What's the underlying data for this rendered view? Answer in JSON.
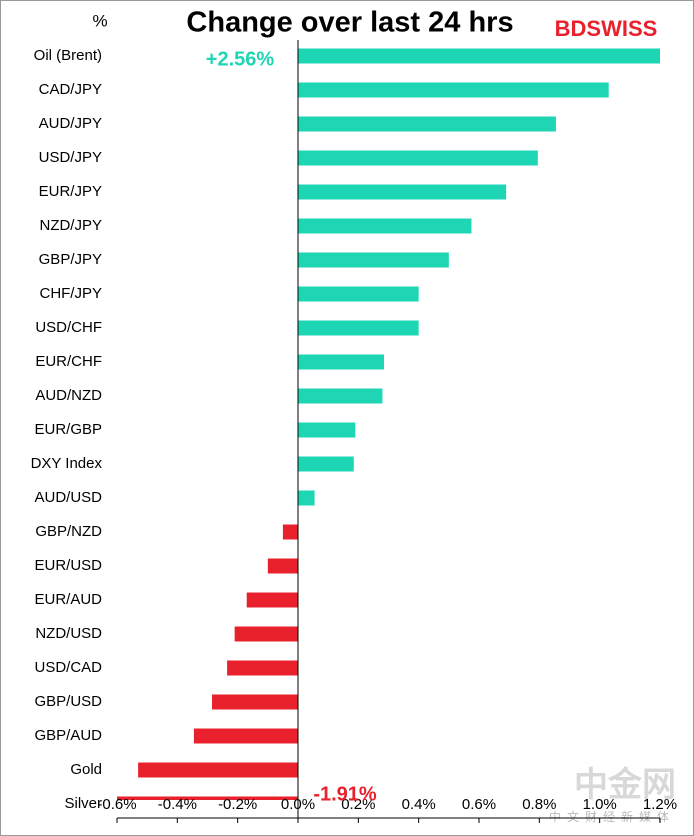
{
  "chart_data": {
    "type": "hbar",
    "title": "Change over last 24 hrs",
    "unit_label": "%",
    "logo": "BDSWISS",
    "watermark": "中金网",
    "watermark_sub": "中文财经新媒体",
    "categories": [
      "Oil (Brent)",
      "CAD/JPY",
      "AUD/JPY",
      "USD/JPY",
      "EUR/JPY",
      "NZD/JPY",
      "GBP/JPY",
      "CHF/JPY",
      "USD/CHF",
      "EUR/CHF",
      "AUD/NZD",
      "EUR/GBP",
      "DXY Index",
      "AUD/USD",
      "GBP/NZD",
      "EUR/USD",
      "EUR/AUD",
      "NZD/USD",
      "USD/CAD",
      "GBP/USD",
      "GBP/AUD",
      "Gold",
      "Silver"
    ],
    "values": [
      2.56,
      1.03,
      0.855,
      0.795,
      0.69,
      0.575,
      0.5,
      0.4,
      0.4,
      0.285,
      0.28,
      0.19,
      0.185,
      0.055,
      -0.05,
      -0.1,
      -0.17,
      -0.21,
      -0.235,
      -0.285,
      -0.345,
      -0.53,
      -1.91
    ],
    "value_labels": [
      "+2.56%",
      null,
      null,
      null,
      null,
      null,
      null,
      null,
      null,
      null,
      null,
      null,
      null,
      null,
      null,
      null,
      null,
      null,
      null,
      null,
      null,
      null,
      "-1.91%"
    ],
    "positive_color": "#1ed6b4",
    "negative_color": "#e8212d",
    "xlim": [
      -0.6,
      1.2
    ],
    "xticks": [
      {
        "value": -0.6,
        "label": "-0.6%"
      },
      {
        "value": -0.4,
        "label": "-0.4%"
      },
      {
        "value": -0.2,
        "label": "-0.2%"
      },
      {
        "value": 0,
        "label": "0.0%"
      },
      {
        "value": 0.2,
        "label": "0.2%"
      },
      {
        "value": 0.4,
        "label": "0.4%"
      },
      {
        "value": 0.6,
        "label": "0.6%"
      },
      {
        "value": 0.8,
        "label": "0.8%"
      },
      {
        "value": 1.0,
        "label": "1.0%"
      },
      {
        "value": 1.2,
        "label": "1.2%"
      }
    ],
    "grid": false
  }
}
